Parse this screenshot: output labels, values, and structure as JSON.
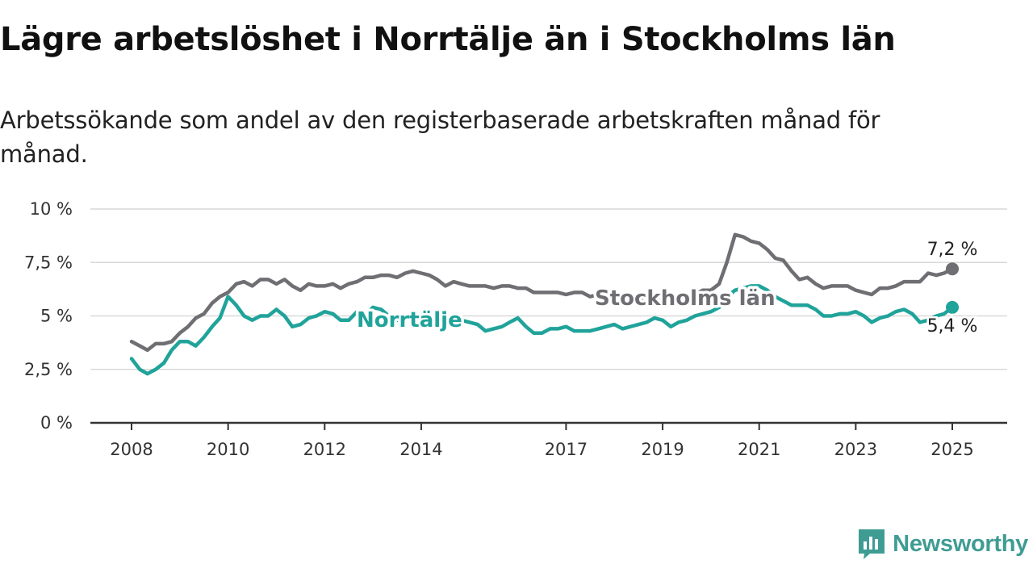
{
  "title": "Lägre arbetslöshet i Norrtälje än i Stockholms län",
  "subtitle": "Arbetssökande som andel av den registerbaserade arbetskraften månad för månad.",
  "brand": {
    "name": "Newsworthy",
    "color": "#3f9c93",
    "icon": "newsworthy-logo-icon"
  },
  "chart_data": {
    "type": "line",
    "title": "Lägre arbetslöshet i Norrtälje än i Stockholms län",
    "subtitle": "Arbetssökande som andel av den registerbaserade arbetskraften månad för månad.",
    "ylim": [
      0,
      10
    ],
    "xlim": [
      2008.0,
      2025.167
    ],
    "grid": true,
    "yticks": [
      {
        "value": 0,
        "label": "0 %"
      },
      {
        "value": 2.5,
        "label": "2,5 %"
      },
      {
        "value": 5,
        "label": "5 %"
      },
      {
        "value": 7.5,
        "label": "7,5 %"
      },
      {
        "value": 10,
        "label": "10 %"
      }
    ],
    "xticks": [
      {
        "value": 2008,
        "label": "2008"
      },
      {
        "value": 2010,
        "label": "2010"
      },
      {
        "value": 2012,
        "label": "2012"
      },
      {
        "value": 2014,
        "label": "2014"
      },
      {
        "value": 2017,
        "label": "2017"
      },
      {
        "value": 2019,
        "label": "2019"
      },
      {
        "value": 2021,
        "label": "2021"
      },
      {
        "value": 2023,
        "label": "2023"
      },
      {
        "value": 2025,
        "label": "2025"
      }
    ],
    "series": [
      {
        "name": "Stockholms län",
        "color": "#6e6e73",
        "end_label": "7,2 %",
        "points": [
          [
            2008.0,
            3.8
          ],
          [
            2008.17,
            3.6
          ],
          [
            2008.33,
            3.4
          ],
          [
            2008.5,
            3.7
          ],
          [
            2008.67,
            3.7
          ],
          [
            2008.83,
            3.8
          ],
          [
            2009.0,
            4.2
          ],
          [
            2009.17,
            4.5
          ],
          [
            2009.33,
            4.9
          ],
          [
            2009.5,
            5.1
          ],
          [
            2009.67,
            5.6
          ],
          [
            2009.83,
            5.9
          ],
          [
            2010.0,
            6.1
          ],
          [
            2010.17,
            6.5
          ],
          [
            2010.33,
            6.6
          ],
          [
            2010.5,
            6.4
          ],
          [
            2010.67,
            6.7
          ],
          [
            2010.83,
            6.7
          ],
          [
            2011.0,
            6.5
          ],
          [
            2011.17,
            6.7
          ],
          [
            2011.33,
            6.4
          ],
          [
            2011.5,
            6.2
          ],
          [
            2011.67,
            6.5
          ],
          [
            2011.83,
            6.4
          ],
          [
            2012.0,
            6.4
          ],
          [
            2012.17,
            6.5
          ],
          [
            2012.33,
            6.3
          ],
          [
            2012.5,
            6.5
          ],
          [
            2012.67,
            6.6
          ],
          [
            2012.83,
            6.8
          ],
          [
            2013.0,
            6.8
          ],
          [
            2013.17,
            6.9
          ],
          [
            2013.33,
            6.9
          ],
          [
            2013.5,
            6.8
          ],
          [
            2013.67,
            7.0
          ],
          [
            2013.83,
            7.1
          ],
          [
            2014.0,
            7.0
          ],
          [
            2014.17,
            6.9
          ],
          [
            2014.33,
            6.7
          ],
          [
            2014.5,
            6.4
          ],
          [
            2014.67,
            6.6
          ],
          [
            2014.83,
            6.5
          ],
          [
            2015.0,
            6.4
          ],
          [
            2015.17,
            6.4
          ],
          [
            2015.33,
            6.4
          ],
          [
            2015.5,
            6.3
          ],
          [
            2015.67,
            6.4
          ],
          [
            2015.83,
            6.4
          ],
          [
            2016.0,
            6.3
          ],
          [
            2016.17,
            6.3
          ],
          [
            2016.33,
            6.1
          ],
          [
            2016.5,
            6.1
          ],
          [
            2016.67,
            6.1
          ],
          [
            2016.83,
            6.1
          ],
          [
            2017.0,
            6.0
          ],
          [
            2017.17,
            6.1
          ],
          [
            2017.33,
            6.1
          ],
          [
            2017.5,
            5.9
          ],
          [
            2017.67,
            6.0
          ],
          [
            2017.83,
            6.0
          ],
          [
            2018.0,
            5.9
          ],
          [
            2018.17,
            5.9
          ],
          [
            2018.33,
            5.8
          ],
          [
            2018.5,
            5.8
          ],
          [
            2018.67,
            5.8
          ],
          [
            2018.83,
            5.9
          ],
          [
            2019.0,
            5.7
          ],
          [
            2019.17,
            5.8
          ],
          [
            2019.33,
            5.8
          ],
          [
            2019.5,
            5.9
          ],
          [
            2019.67,
            6.0
          ],
          [
            2019.83,
            6.2
          ],
          [
            2020.0,
            6.2
          ],
          [
            2020.17,
            6.5
          ],
          [
            2020.33,
            7.5
          ],
          [
            2020.5,
            8.8
          ],
          [
            2020.67,
            8.7
          ],
          [
            2020.83,
            8.5
          ],
          [
            2021.0,
            8.4
          ],
          [
            2021.17,
            8.1
          ],
          [
            2021.33,
            7.7
          ],
          [
            2021.5,
            7.6
          ],
          [
            2021.67,
            7.1
          ],
          [
            2021.83,
            6.7
          ],
          [
            2022.0,
            6.8
          ],
          [
            2022.17,
            6.5
          ],
          [
            2022.33,
            6.3
          ],
          [
            2022.5,
            6.4
          ],
          [
            2022.67,
            6.4
          ],
          [
            2022.83,
            6.4
          ],
          [
            2023.0,
            6.2
          ],
          [
            2023.17,
            6.1
          ],
          [
            2023.33,
            6.0
          ],
          [
            2023.5,
            6.3
          ],
          [
            2023.67,
            6.3
          ],
          [
            2023.83,
            6.4
          ],
          [
            2024.0,
            6.6
          ],
          [
            2024.17,
            6.6
          ],
          [
            2024.33,
            6.6
          ],
          [
            2024.5,
            7.0
          ],
          [
            2024.67,
            6.9
          ],
          [
            2024.83,
            7.0
          ],
          [
            2025.0,
            7.2
          ]
        ]
      },
      {
        "name": "Norrtälje",
        "color": "#20a39a",
        "end_label": "5,4 %",
        "points": [
          [
            2008.0,
            3.0
          ],
          [
            2008.17,
            2.5
          ],
          [
            2008.33,
            2.3
          ],
          [
            2008.5,
            2.5
          ],
          [
            2008.67,
            2.8
          ],
          [
            2008.83,
            3.4
          ],
          [
            2009.0,
            3.8
          ],
          [
            2009.17,
            3.8
          ],
          [
            2009.33,
            3.6
          ],
          [
            2009.5,
            4.0
          ],
          [
            2009.67,
            4.5
          ],
          [
            2009.83,
            4.9
          ],
          [
            2010.0,
            5.9
          ],
          [
            2010.17,
            5.5
          ],
          [
            2010.33,
            5.0
          ],
          [
            2010.5,
            4.8
          ],
          [
            2010.67,
            5.0
          ],
          [
            2010.83,
            5.0
          ],
          [
            2011.0,
            5.3
          ],
          [
            2011.17,
            5.0
          ],
          [
            2011.33,
            4.5
          ],
          [
            2011.5,
            4.6
          ],
          [
            2011.67,
            4.9
          ],
          [
            2011.83,
            5.0
          ],
          [
            2012.0,
            5.2
          ],
          [
            2012.17,
            5.1
          ],
          [
            2012.33,
            4.8
          ],
          [
            2012.5,
            4.8
          ],
          [
            2012.67,
            5.2
          ],
          [
            2012.83,
            5.0
          ],
          [
            2013.0,
            5.4
          ],
          [
            2013.17,
            5.3
          ],
          [
            2013.33,
            5.0
          ],
          [
            2013.5,
            4.8
          ],
          [
            2013.67,
            4.9
          ],
          [
            2013.83,
            4.8
          ],
          [
            2014.0,
            4.9
          ],
          [
            2014.17,
            4.7
          ],
          [
            2014.33,
            4.7
          ],
          [
            2014.5,
            4.6
          ],
          [
            2014.67,
            4.7
          ],
          [
            2014.83,
            4.8
          ],
          [
            2015.0,
            4.7
          ],
          [
            2015.17,
            4.6
          ],
          [
            2015.33,
            4.3
          ],
          [
            2015.5,
            4.4
          ],
          [
            2015.67,
            4.5
          ],
          [
            2015.83,
            4.7
          ],
          [
            2016.0,
            4.9
          ],
          [
            2016.17,
            4.5
          ],
          [
            2016.33,
            4.2
          ],
          [
            2016.5,
            4.2
          ],
          [
            2016.67,
            4.4
          ],
          [
            2016.83,
            4.4
          ],
          [
            2017.0,
            4.5
          ],
          [
            2017.17,
            4.3
          ],
          [
            2017.33,
            4.3
          ],
          [
            2017.5,
            4.3
          ],
          [
            2017.67,
            4.4
          ],
          [
            2017.83,
            4.5
          ],
          [
            2018.0,
            4.6
          ],
          [
            2018.17,
            4.4
          ],
          [
            2018.33,
            4.5
          ],
          [
            2018.5,
            4.6
          ],
          [
            2018.67,
            4.7
          ],
          [
            2018.83,
            4.9
          ],
          [
            2019.0,
            4.8
          ],
          [
            2019.17,
            4.5
          ],
          [
            2019.33,
            4.7
          ],
          [
            2019.5,
            4.8
          ],
          [
            2019.67,
            5.0
          ],
          [
            2019.83,
            5.1
          ],
          [
            2020.0,
            5.2
          ],
          [
            2020.17,
            5.4
          ],
          [
            2020.33,
            5.9
          ],
          [
            2020.5,
            6.2
          ],
          [
            2020.67,
            6.3
          ],
          [
            2020.83,
            6.4
          ],
          [
            2021.0,
            6.4
          ],
          [
            2021.17,
            6.2
          ],
          [
            2021.33,
            5.9
          ],
          [
            2021.5,
            5.7
          ],
          [
            2021.67,
            5.5
          ],
          [
            2021.83,
            5.5
          ],
          [
            2022.0,
            5.5
          ],
          [
            2022.17,
            5.3
          ],
          [
            2022.33,
            5.0
          ],
          [
            2022.5,
            5.0
          ],
          [
            2022.67,
            5.1
          ],
          [
            2022.83,
            5.1
          ],
          [
            2023.0,
            5.2
          ],
          [
            2023.17,
            5.0
          ],
          [
            2023.33,
            4.7
          ],
          [
            2023.5,
            4.9
          ],
          [
            2023.67,
            5.0
          ],
          [
            2023.83,
            5.2
          ],
          [
            2024.0,
            5.3
          ],
          [
            2024.17,
            5.1
          ],
          [
            2024.33,
            4.7
          ],
          [
            2024.5,
            4.8
          ],
          [
            2024.67,
            5.0
          ],
          [
            2024.83,
            5.1
          ],
          [
            2025.0,
            5.4
          ]
        ]
      }
    ]
  }
}
